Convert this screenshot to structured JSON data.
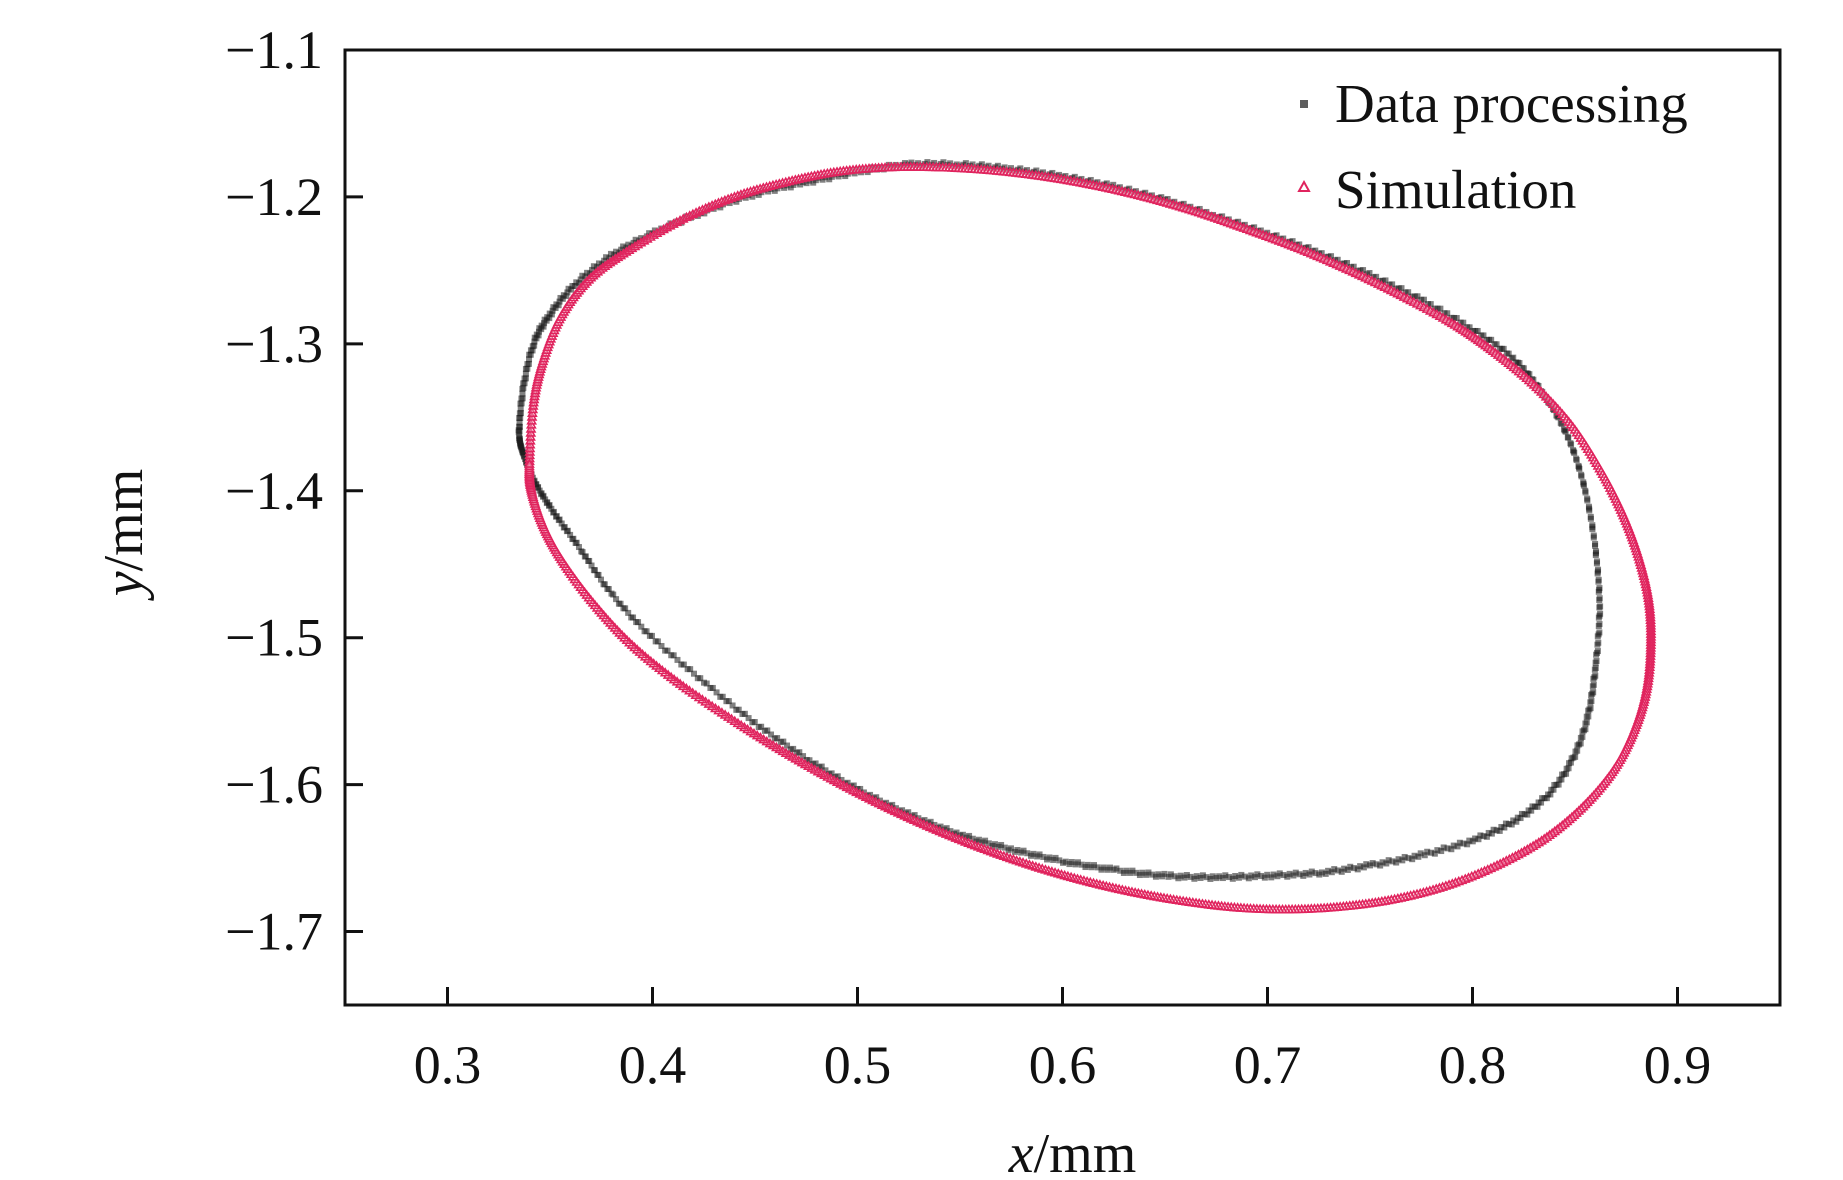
{
  "chart_data": {
    "type": "scatter",
    "title": "",
    "xlabel": {
      "var": "x",
      "unit": "/mm"
    },
    "ylabel": {
      "var": "y",
      "unit": "/mm"
    },
    "xlim": [
      0.25,
      0.95
    ],
    "ylim": [
      -1.75,
      -1.1
    ],
    "xticks": [
      0.3,
      0.4,
      0.5,
      0.6,
      0.7,
      0.8,
      0.9
    ],
    "xtick_labels": [
      "0.3",
      "0.4",
      "0.5",
      "0.6",
      "0.7",
      "0.8",
      "0.9"
    ],
    "yticks": [
      -1.1,
      -1.2,
      -1.3,
      -1.4,
      -1.5,
      -1.6,
      -1.7
    ],
    "ytick_labels": [
      "−1.1",
      "−1.2",
      "−1.3",
      "−1.4",
      "−1.5",
      "−1.6",
      "−1.7"
    ],
    "legend_position": "top-right",
    "series": [
      {
        "name": "Data processing",
        "marker": "square",
        "color": "#1a1a1a",
        "x": [
          0.335,
          0.337,
          0.342,
          0.35,
          0.362,
          0.38,
          0.4,
          0.425,
          0.45,
          0.475,
          0.5,
          0.525,
          0.55,
          0.575,
          0.6,
          0.625,
          0.65,
          0.675,
          0.7,
          0.725,
          0.75,
          0.775,
          0.8,
          0.82,
          0.835,
          0.847,
          0.855,
          0.86,
          0.862,
          0.86,
          0.856,
          0.848,
          0.836,
          0.82,
          0.8,
          0.775,
          0.75,
          0.725,
          0.7,
          0.675,
          0.65,
          0.625,
          0.6,
          0.575,
          0.55,
          0.525,
          0.5,
          0.475,
          0.45,
          0.425,
          0.4,
          0.38,
          0.365,
          0.352,
          0.343,
          0.337,
          0.335
        ],
        "y": [
          -1.36,
          -1.33,
          -1.3,
          -1.28,
          -1.26,
          -1.24,
          -1.225,
          -1.21,
          -1.198,
          -1.19,
          -1.183,
          -1.178,
          -1.178,
          -1.181,
          -1.186,
          -1.193,
          -1.202,
          -1.213,
          -1.225,
          -1.238,
          -1.253,
          -1.27,
          -1.29,
          -1.31,
          -1.335,
          -1.365,
          -1.4,
          -1.44,
          -1.48,
          -1.52,
          -1.555,
          -1.585,
          -1.608,
          -1.625,
          -1.638,
          -1.648,
          -1.655,
          -1.66,
          -1.662,
          -1.663,
          -1.662,
          -1.658,
          -1.652,
          -1.644,
          -1.634,
          -1.62,
          -1.603,
          -1.582,
          -1.558,
          -1.53,
          -1.5,
          -1.47,
          -1.44,
          -1.415,
          -1.395,
          -1.375,
          -1.36
        ]
      },
      {
        "name": "Simulation",
        "marker": "triangle",
        "color": "#e0245e",
        "x": [
          0.34,
          0.342,
          0.347,
          0.356,
          0.37,
          0.39,
          0.415,
          0.44,
          0.465,
          0.49,
          0.515,
          0.54,
          0.565,
          0.59,
          0.615,
          0.64,
          0.665,
          0.69,
          0.715,
          0.74,
          0.765,
          0.79,
          0.81,
          0.83,
          0.848,
          0.862,
          0.873,
          0.881,
          0.886,
          0.887,
          0.885,
          0.879,
          0.869,
          0.854,
          0.835,
          0.812,
          0.787,
          0.762,
          0.737,
          0.712,
          0.687,
          0.662,
          0.637,
          0.612,
          0.587,
          0.562,
          0.537,
          0.512,
          0.487,
          0.462,
          0.437,
          0.412,
          0.39,
          0.372,
          0.357,
          0.347,
          0.341,
          0.34
        ],
        "y": [
          -1.38,
          -1.34,
          -1.31,
          -1.28,
          -1.255,
          -1.235,
          -1.215,
          -1.2,
          -1.19,
          -1.183,
          -1.18,
          -1.18,
          -1.182,
          -1.186,
          -1.192,
          -1.2,
          -1.21,
          -1.222,
          -1.235,
          -1.25,
          -1.267,
          -1.286,
          -1.305,
          -1.328,
          -1.355,
          -1.385,
          -1.415,
          -1.445,
          -1.475,
          -1.505,
          -1.535,
          -1.563,
          -1.59,
          -1.615,
          -1.637,
          -1.655,
          -1.669,
          -1.678,
          -1.683,
          -1.685,
          -1.684,
          -1.68,
          -1.674,
          -1.666,
          -1.656,
          -1.644,
          -1.63,
          -1.614,
          -1.596,
          -1.576,
          -1.554,
          -1.53,
          -1.505,
          -1.478,
          -1.45,
          -1.425,
          -1.4,
          -1.38
        ]
      }
    ]
  }
}
